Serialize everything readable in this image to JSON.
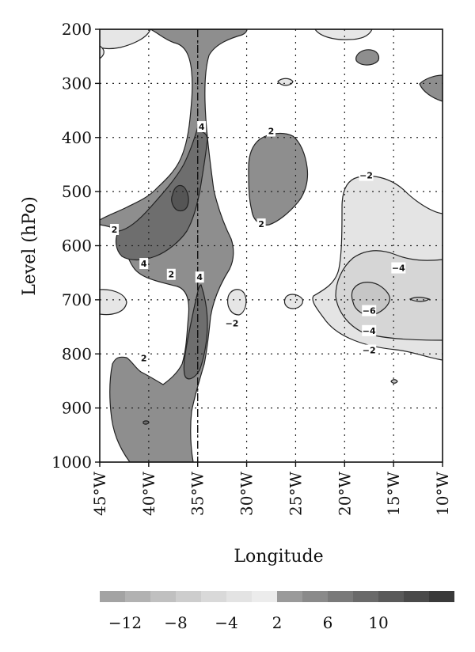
{
  "chart_data": {
    "type": "contour",
    "title": "",
    "xlabel": "Longitude",
    "ylabel": "Level (hPo)",
    "xlim": [
      -45,
      -10
    ],
    "ylim": [
      1000,
      200
    ],
    "x_ticks": [
      -45,
      -40,
      -35,
      -30,
      -25,
      -20,
      -15,
      -10
    ],
    "x_tick_labels": [
      "45°W",
      "40°W",
      "35°W",
      "30°W",
      "25°W",
      "20°W",
      "15°W",
      "10°W"
    ],
    "y_ticks": [
      200,
      300,
      400,
      500,
      600,
      700,
      800,
      900,
      1000
    ],
    "y_tick_labels": [
      "200",
      "300",
      "400",
      "500",
      "600",
      "700",
      "800",
      "900",
      "1000"
    ],
    "grid": "dotted",
    "reference_line": {
      "x": -35,
      "style": "dash-dot"
    },
    "contour_labels": [
      {
        "text": "4",
        "x": -34.6,
        "y": 380
      },
      {
        "text": "2",
        "x": -27.5,
        "y": 388
      },
      {
        "text": "−2",
        "x": -17.8,
        "y": 470
      },
      {
        "text": "2",
        "x": -43.5,
        "y": 570
      },
      {
        "text": "2",
        "x": -28.5,
        "y": 560
      },
      {
        "text": "4",
        "x": -40.5,
        "y": 633
      },
      {
        "text": "2",
        "x": -37.7,
        "y": 653
      },
      {
        "text": "4",
        "x": -34.8,
        "y": 658
      },
      {
        "text": "−4",
        "x": -14.5,
        "y": 641
      },
      {
        "text": "−6",
        "x": -17.5,
        "y": 720
      },
      {
        "text": "−2",
        "x": -31.5,
        "y": 743
      },
      {
        "text": "−4",
        "x": -17.5,
        "y": 757
      },
      {
        "text": "2",
        "x": -40.5,
        "y": 808
      },
      {
        "text": "−2",
        "x": -17.5,
        "y": 793
      }
    ],
    "legend": {
      "negative_levels": [
        -14,
        -12,
        -10,
        -8,
        -6,
        -4,
        -2
      ],
      "negative_labels": [
        "−12",
        "−8",
        "−4"
      ],
      "positive_levels": [
        2,
        4,
        6,
        8,
        10,
        12,
        14
      ],
      "positive_labels": [
        "2",
        "6",
        "10"
      ],
      "negative_colors": [
        "#a3a3a3",
        "#b2b2b2",
        "#c0c0c0",
        "#cdcdcd",
        "#d9d9d9",
        "#e3e3e3",
        "#ececec"
      ],
      "positive_colors": [
        "#9a9a9a",
        "#8a8a8a",
        "#7a7a7a",
        "#6a6a6a",
        "#5a5a5a",
        "#4a4a4a",
        "#3a3a3a"
      ]
    }
  }
}
